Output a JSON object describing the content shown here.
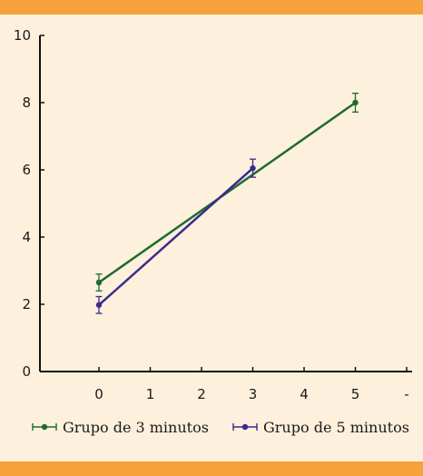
{
  "colors": {
    "background": "#fdf0dc",
    "band": "#f5a23c",
    "axis": "#111111",
    "series_1": "#1e6b2e",
    "series_2": "#3b2a8c"
  },
  "chart_data": {
    "type": "line",
    "title": "",
    "xlabel": "",
    "ylabel": "",
    "xlim": [
      -1.1,
      6
    ],
    "ylim": [
      0,
      10
    ],
    "x_ticks": [
      "0",
      "1",
      "2",
      "3",
      "4",
      "5",
      "-"
    ],
    "y_ticks": [
      "0",
      "2",
      "4",
      "6",
      "8",
      "10"
    ],
    "grid": false,
    "legend_position": "bottom",
    "series": [
      {
        "name": "Grupo de 3 minutos",
        "color": "#1e6b2e",
        "x": [
          0,
          5
        ],
        "y": [
          2.65,
          8.0
        ],
        "error": [
          0.25,
          0.28
        ]
      },
      {
        "name": "Grupo de 5 minutos",
        "color": "#3b2a8c",
        "x": [
          0,
          3
        ],
        "y": [
          1.98,
          6.05
        ],
        "error": [
          0.25,
          0.27
        ]
      }
    ]
  }
}
